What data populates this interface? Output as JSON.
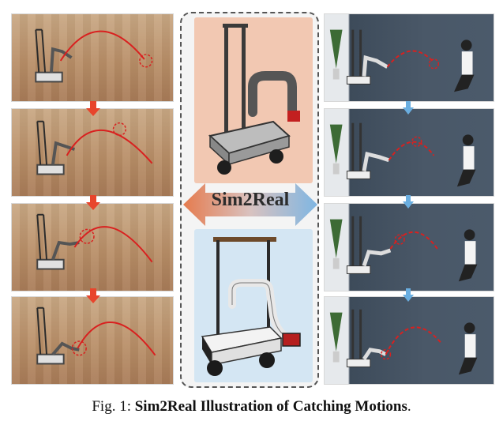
{
  "figure": {
    "center_label": "Sim2Real",
    "sim_arrow_color": "#e8452c",
    "real_arrow_color": "#6aaee0",
    "sim_band_color": "#e57b4e",
    "real_band_color": "#7fb6e2"
  },
  "caption": {
    "prefix": "Fig. 1:",
    "title": "Sim2Real Illustration of Catching Motions",
    "suffix": "."
  }
}
